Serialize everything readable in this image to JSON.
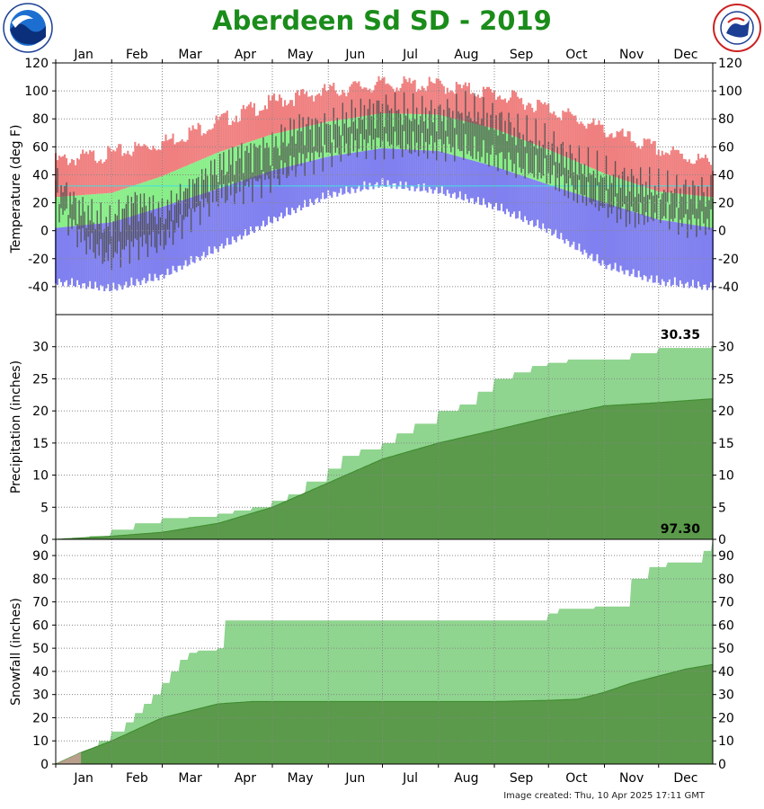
{
  "title": "Aberdeen Sd SD - 2019",
  "credit": "Image created: Thu, 10 Apr 2025 17:11 GMT",
  "logos": {
    "left": {
      "label": "NOAA",
      "ring_text": "NATIONAL OCEANIC AND ATMOSPHERIC ADMINISTRATION · U.S. DEPARTMENT OF COMMERCE"
    },
    "right": {
      "ring_text": "NATIONAL WEATHER SERVICE"
    }
  },
  "colors": {
    "title": "#1a8c1a",
    "record_high": "#f08080",
    "normal_band": "#88ee88",
    "record_low": "#8080f0",
    "observed_bar": "#4a4a4a",
    "precip_observed": "#8fd48f",
    "precip_normal": "#5a9a4a",
    "snow_observed": "#8fd48f",
    "snow_normal": "#5a9a4a",
    "snow_missing": "#b8a08c",
    "freezing_line": "#40e0e0"
  },
  "chart_data": [
    {
      "type": "area",
      "panel": "temperature",
      "ylabel": "Temperature (deg F)",
      "ylim": [
        -60,
        120
      ],
      "yticks": [
        120,
        100,
        80,
        60,
        40,
        20,
        0,
        -20,
        -40
      ],
      "months": [
        "Jan",
        "Feb",
        "Mar",
        "Apr",
        "May",
        "Jun",
        "Jul",
        "Aug",
        "Sep",
        "Oct",
        "Nov",
        "Dec"
      ],
      "grid": true,
      "freezing_line": 32,
      "series": [
        {
          "role": "record_high",
          "x": [
            1,
            32,
            60,
            91,
            121,
            152,
            182,
            213,
            244,
            274,
            305,
            335,
            365
          ],
          "y": [
            50,
            55,
            63,
            78,
            92,
            100,
            105,
            104,
            98,
            88,
            72,
            58,
            48
          ]
        },
        {
          "role": "normal_high",
          "x": [
            1,
            32,
            60,
            91,
            121,
            152,
            182,
            213,
            244,
            274,
            305,
            335,
            365
          ],
          "y": [
            24,
            27,
            39,
            56,
            69,
            78,
            84,
            83,
            73,
            58,
            41,
            28,
            24
          ]
        },
        {
          "role": "normal_low",
          "x": [
            1,
            32,
            60,
            91,
            121,
            152,
            182,
            213,
            244,
            274,
            305,
            335,
            365
          ],
          "y": [
            2,
            6,
            17,
            30,
            43,
            53,
            59,
            57,
            46,
            33,
            20,
            8,
            2
          ]
        },
        {
          "role": "record_low",
          "x": [
            1,
            32,
            60,
            91,
            121,
            152,
            182,
            213,
            244,
            274,
            305,
            335,
            365
          ],
          "y": [
            -32,
            -37,
            -28,
            -8,
            12,
            30,
            38,
            33,
            22,
            5,
            -20,
            -32,
            -36
          ]
        },
        {
          "role": "observed_high",
          "x": [
            1,
            15,
            30,
            45,
            60,
            75,
            91,
            105,
            121,
            135,
            152,
            166,
            182,
            196,
            213,
            227,
            244,
            258,
            274,
            288,
            305,
            320,
            335,
            350,
            365
          ],
          "y": [
            35,
            15,
            5,
            22,
            12,
            30,
            45,
            55,
            60,
            74,
            75,
            82,
            88,
            85,
            83,
            86,
            80,
            70,
            62,
            50,
            40,
            35,
            30,
            28,
            27
          ]
        },
        {
          "role": "observed_low",
          "x": [
            1,
            15,
            30,
            45,
            60,
            75,
            91,
            105,
            121,
            135,
            152,
            166,
            182,
            196,
            213,
            227,
            244,
            258,
            274,
            288,
            305,
            320,
            335,
            350,
            365
          ],
          "y": [
            20,
            -5,
            -20,
            -10,
            -8,
            10,
            25,
            30,
            38,
            48,
            55,
            60,
            62,
            60,
            60,
            58,
            52,
            45,
            40,
            28,
            18,
            10,
            12,
            5,
            5
          ]
        }
      ]
    },
    {
      "type": "area",
      "panel": "precipitation",
      "ylabel": "Precipitation (inches)",
      "ylim": [
        0,
        35
      ],
      "yticks": [
        30,
        25,
        20,
        15,
        10,
        5,
        0
      ],
      "total_label": "30.35",
      "series": [
        {
          "role": "observed_cumulative",
          "x": [
            1,
            20,
            32,
            45,
            60,
            75,
            91,
            100,
            110,
            121,
            130,
            140,
            152,
            160,
            170,
            182,
            190,
            200,
            213,
            225,
            235,
            244,
            255,
            265,
            274,
            285,
            295,
            305,
            320,
            335,
            350,
            365
          ],
          "y": [
            0,
            0.5,
            1.5,
            2.5,
            3.3,
            3.5,
            4,
            4.5,
            5,
            6,
            7,
            9,
            11,
            13,
            14,
            15,
            16.5,
            18,
            20,
            21,
            23,
            25,
            26,
            27,
            27.5,
            28,
            28,
            28,
            29,
            29.8,
            29.8,
            30.35
          ]
        },
        {
          "role": "normal_cumulative",
          "x": [
            1,
            32,
            60,
            91,
            121,
            152,
            182,
            213,
            244,
            274,
            305,
            335,
            365
          ],
          "y": [
            0,
            0.5,
            1.1,
            2.5,
            5,
            8.8,
            12.5,
            15,
            17,
            19,
            20.8,
            21.3,
            21.9
          ]
        }
      ]
    },
    {
      "type": "area",
      "panel": "snowfall",
      "ylabel": "Snowfall (inches)",
      "ylim": [
        0,
        97
      ],
      "yticks": [
        90,
        80,
        70,
        60,
        50,
        40,
        30,
        20,
        10,
        0
      ],
      "total_label": "97.30",
      "missing_until_x": 15,
      "series": [
        {
          "role": "observed_cumulative",
          "x": [
            1,
            10,
            15,
            20,
            25,
            32,
            40,
            45,
            50,
            55,
            60,
            65,
            70,
            75,
            80,
            85,
            91,
            95,
            100,
            110,
            121,
            150,
            200,
            250,
            270,
            274,
            280,
            290,
            300,
            305,
            310,
            320,
            330,
            340,
            350,
            355,
            360,
            365
          ],
          "y": [
            0,
            2,
            5,
            6,
            10,
            14,
            18,
            22,
            26,
            30,
            35,
            40,
            45,
            48,
            49,
            49,
            50,
            62,
            62,
            62,
            62,
            62,
            62,
            62,
            62,
            65,
            67,
            67,
            68,
            68,
            68,
            80,
            85,
            87,
            87,
            87,
            92,
            97.3
          ]
        },
        {
          "role": "normal_cumulative",
          "x": [
            1,
            15,
            32,
            60,
            91,
            110,
            121,
            152,
            182,
            213,
            244,
            274,
            290,
            305,
            320,
            335,
            350,
            365
          ],
          "y": [
            0,
            5,
            10,
            20,
            26,
            27,
            27,
            27,
            27,
            27,
            27,
            27.5,
            28,
            31,
            35,
            38,
            41,
            43
          ]
        }
      ]
    }
  ]
}
